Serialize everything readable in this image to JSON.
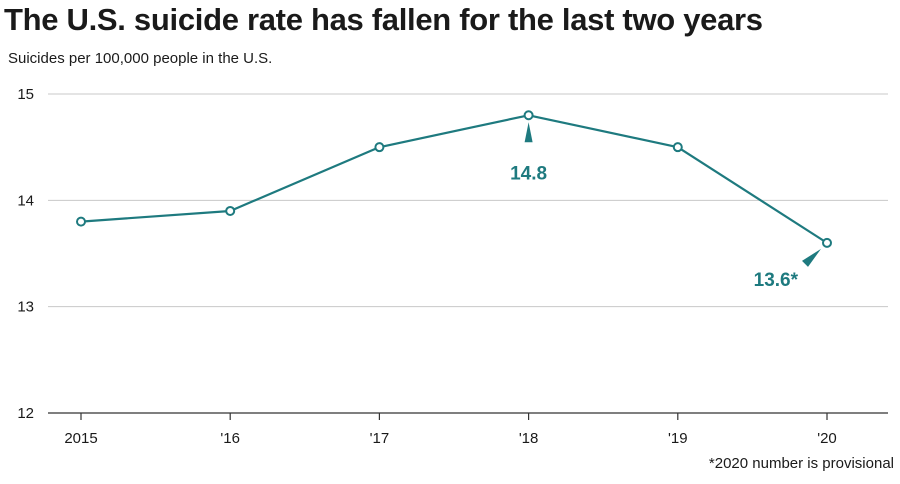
{
  "colors": {
    "line": "#1e7a7f",
    "grid": "#c8c8c8",
    "axis": "#333333",
    "text": "#1a1a1a"
  },
  "chart_data": {
    "type": "line",
    "title": "The U.S. suicide rate has fallen for the last two years",
    "ylabel": "Suicides per 100,000 people in the U.S.",
    "xlabel": "",
    "footnote": "*2020 number is provisional",
    "x": [
      "2015",
      "'16",
      "'17",
      "'18",
      "'19",
      "'20"
    ],
    "series": [
      {
        "values": [
          13.8,
          13.9,
          14.5,
          14.8,
          14.5,
          13.6
        ]
      }
    ],
    "ylim": [
      12,
      15
    ],
    "yticks": [
      "12",
      "13",
      "14",
      "15"
    ],
    "grid": true,
    "annotations": [
      {
        "index": 3,
        "text": "14.8"
      },
      {
        "index": 5,
        "text": "13.6*"
      }
    ]
  }
}
